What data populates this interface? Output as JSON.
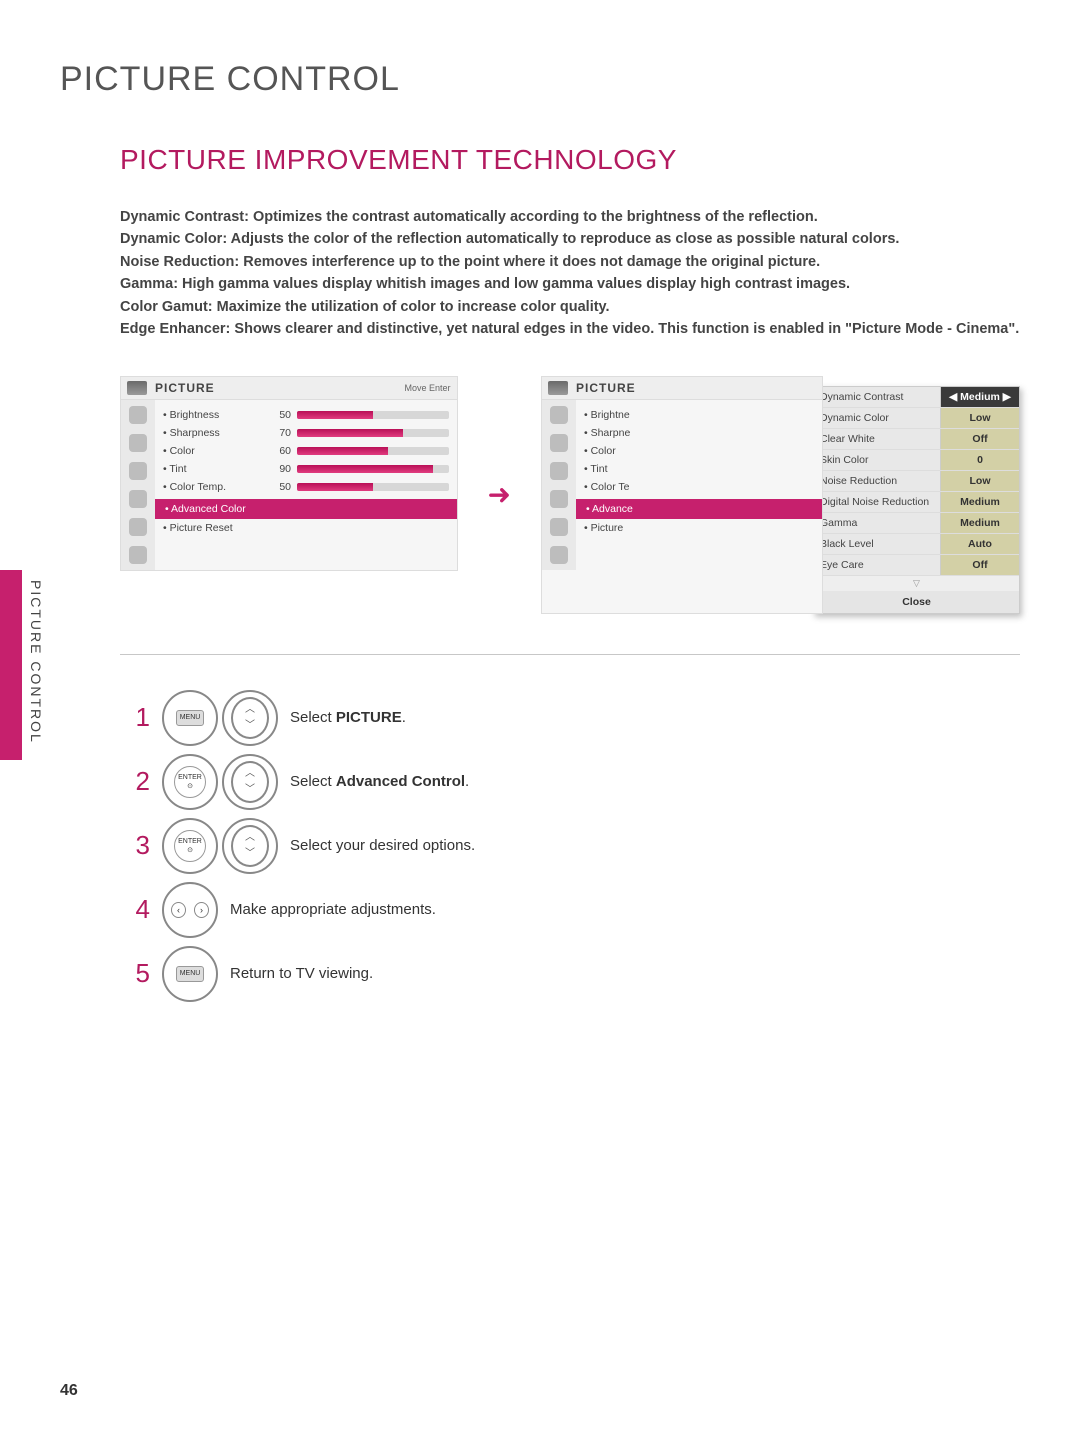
{
  "page": {
    "title": "PICTURE CONTROL",
    "subtitle": "PICTURE IMPROVEMENT TECHNOLOGY",
    "side_label": "PICTURE CONTROL",
    "number": "46"
  },
  "desc": [
    "Dynamic Contrast: Optimizes the contrast automatically according to the brightness of the reflection.",
    "Dynamic Color: Adjusts the color of the reflection automatically to reproduce as close as possible natural colors.",
    "Noise Reduction: Removes interference up to the point where it does not damage the original picture.",
    "Gamma: High gamma values display whitish images and low gamma values display high contrast images.",
    "Color Gamut: Maximize the utilization of color to increase color quality.",
    "Edge Enhancer: Shows clearer and distinctive, yet natural edges in the video. This function is enabled in \"Picture Mode - Cinema\"."
  ],
  "osd_left": {
    "title": "PICTURE",
    "hint": "Move    Enter",
    "rows": [
      {
        "label": "Brightness",
        "value": 50
      },
      {
        "label": "Sharpness",
        "value": 70
      },
      {
        "label": "Color",
        "value": 60
      },
      {
        "label": "Tint",
        "value": 90
      },
      {
        "label": "Color Temp.",
        "value": 50
      }
    ],
    "advanced_label": "Advanced Color",
    "reset_label": "Picture Reset"
  },
  "osd_right": {
    "title": "PICTURE",
    "rows": [
      {
        "label": "Brightne"
      },
      {
        "label": "Sharpne"
      },
      {
        "label": "Color"
      },
      {
        "label": "Tint"
      },
      {
        "label": "Color Te"
      }
    ],
    "advanced_label": "Advance",
    "reset_label": "Picture"
  },
  "popup": {
    "items": [
      {
        "name": "Dynamic Contrast",
        "value": "Medium",
        "active": true,
        "arrows": true
      },
      {
        "name": "Dynamic Color",
        "value": "Low"
      },
      {
        "name": "Clear White",
        "value": "Off"
      },
      {
        "name": "Skin Color",
        "value": "0"
      },
      {
        "name": "Noise Reduction",
        "value": "Low"
      },
      {
        "name": "Digital Noise Reduction",
        "value": "Medium"
      },
      {
        "name": "Gamma",
        "value": "Medium"
      },
      {
        "name": "Black Level",
        "value": "Auto"
      },
      {
        "name": "Eye Care",
        "value": "Off"
      }
    ],
    "close": "Close"
  },
  "steps": [
    {
      "n": "1",
      "btns": [
        "menu",
        "updown"
      ],
      "text_pre": "Select ",
      "text_bold": "PICTURE",
      "text_post": "."
    },
    {
      "n": "2",
      "btns": [
        "enter",
        "updown"
      ],
      "text_pre": "Select ",
      "text_bold": "Advanced Control",
      "text_post": "."
    },
    {
      "n": "3",
      "btns": [
        "enter",
        "updown"
      ],
      "text_pre": "Select your desired options.",
      "text_bold": "",
      "text_post": ""
    },
    {
      "n": "4",
      "btns": [
        "leftright"
      ],
      "text_pre": "Make appropriate adjustments.",
      "text_bold": "",
      "text_post": ""
    },
    {
      "n": "5",
      "btns": [
        "menu"
      ],
      "text_pre": "Return to TV viewing.",
      "text_bold": "",
      "text_post": ""
    }
  ],
  "buttons": {
    "menu": "MENU",
    "enter": "ENTER"
  }
}
